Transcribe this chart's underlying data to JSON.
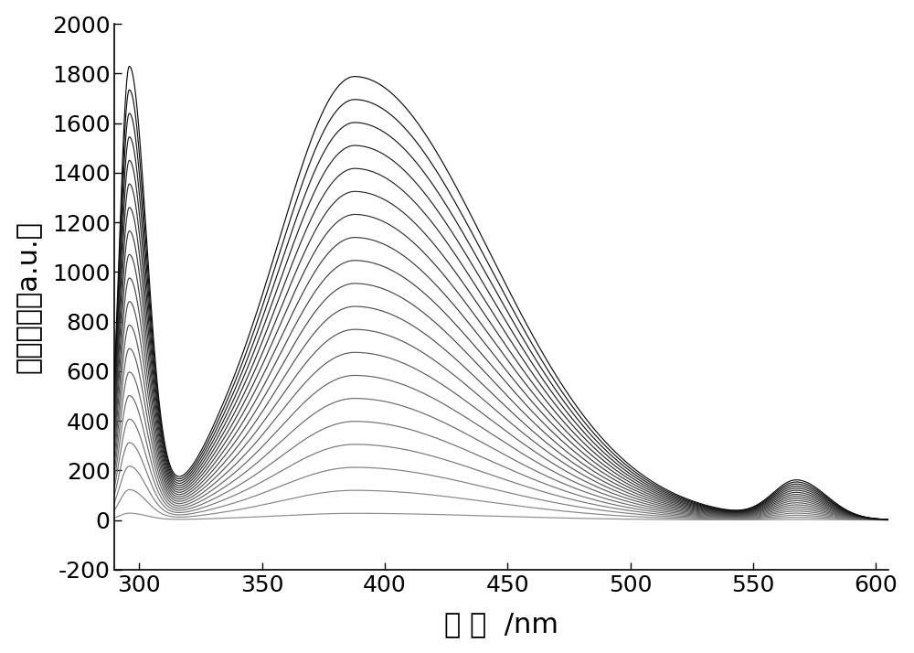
{
  "xlabel": "波 长  /nm",
  "ylabel": "荧光强度（a.u.）",
  "xlim": [
    290,
    605
  ],
  "ylim": [
    -200,
    2000
  ],
  "xticks": [
    300,
    350,
    400,
    450,
    500,
    550,
    600
  ],
  "yticks": [
    -200,
    0,
    200,
    400,
    600,
    800,
    1000,
    1200,
    1400,
    1600,
    1800,
    2000
  ],
  "n_curves": 20,
  "background_color": "#ffffff",
  "font_size_label": 22,
  "font_size_tick": 18,
  "line_color_min": 0.55,
  "line_color_max": 0.05,
  "linewidth": 0.85
}
